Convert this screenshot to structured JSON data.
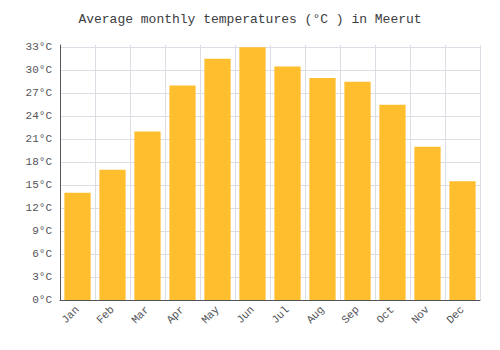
{
  "chart_data": {
    "type": "bar",
    "title": "Average monthly temperatures (°C ) in Meerut",
    "categories": [
      "Jan",
      "Feb",
      "Mar",
      "Apr",
      "May",
      "Jun",
      "Jul",
      "Aug",
      "Sep",
      "Oct",
      "Nov",
      "Dec"
    ],
    "values": [
      14,
      17,
      22,
      28,
      31.5,
      33,
      30.5,
      29,
      28.5,
      25.5,
      20,
      15.5
    ],
    "color": "#FFBE2D",
    "ylim": [
      0,
      33.3
    ],
    "yticks": [
      {
        "value": 0,
        "label": "0°C"
      },
      {
        "value": 3,
        "label": "3°C"
      },
      {
        "value": 6,
        "label": "6°C"
      },
      {
        "value": 9,
        "label": "9°C"
      },
      {
        "value": 12,
        "label": "12°C"
      },
      {
        "value": 15,
        "label": "15°C"
      },
      {
        "value": 18,
        "label": "18°C"
      },
      {
        "value": 21,
        "label": "21°C"
      },
      {
        "value": 24,
        "label": "24°C"
      },
      {
        "value": 27,
        "label": "27°C"
      },
      {
        "value": 30,
        "label": "30°C"
      },
      {
        "value": 33,
        "label": "33°C"
      }
    ],
    "grid": true
  }
}
